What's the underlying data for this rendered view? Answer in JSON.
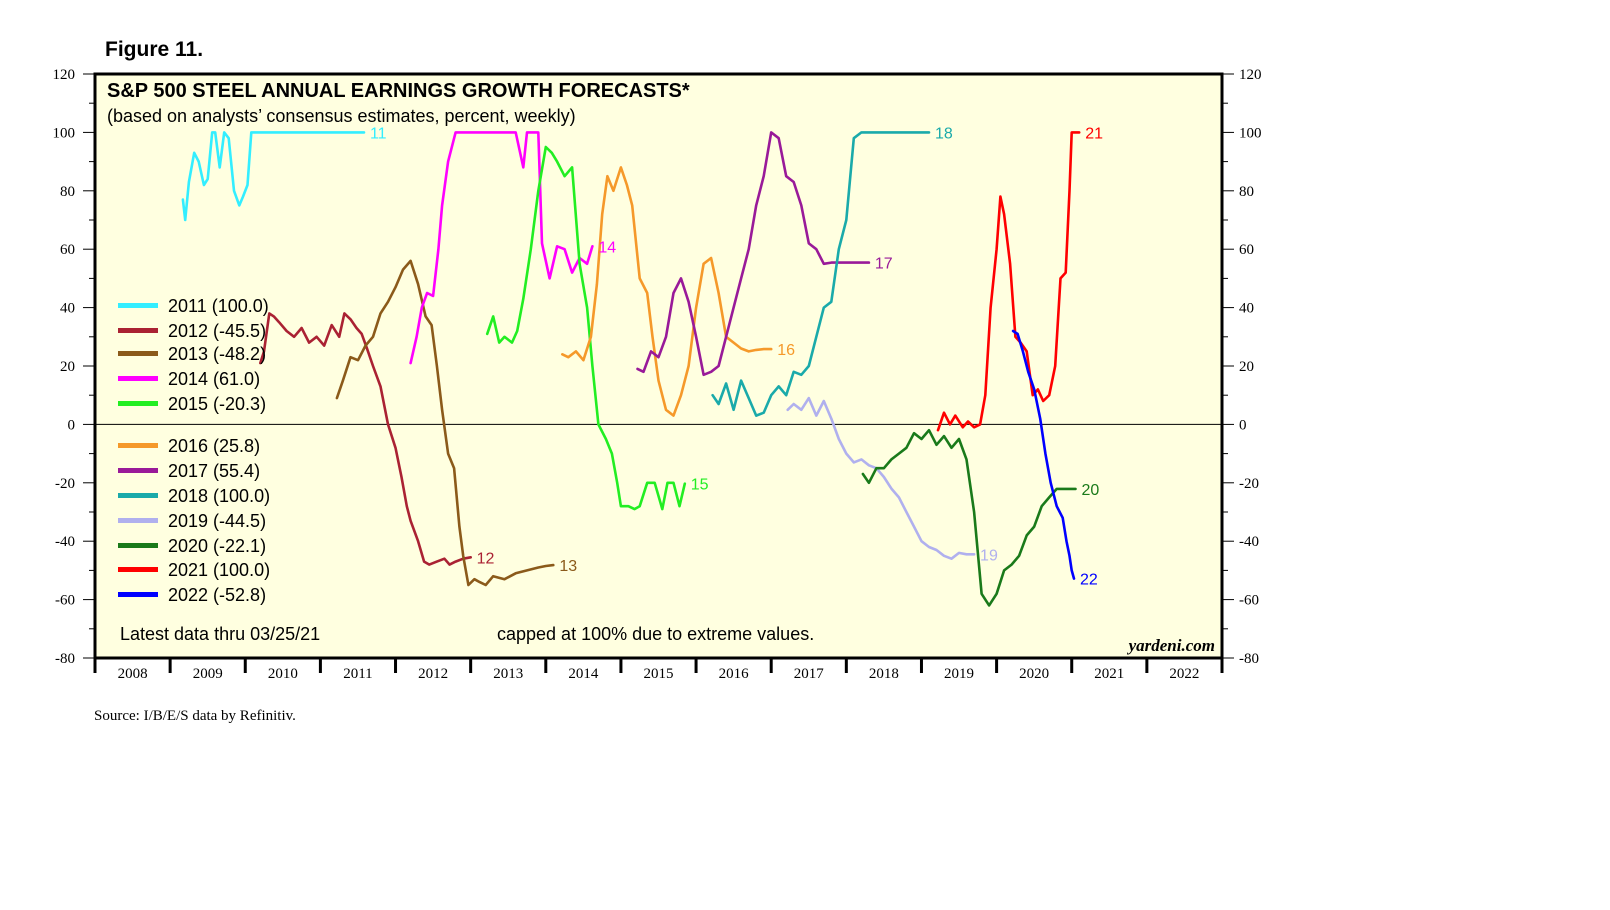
{
  "figure_label": "Figure 11.",
  "source": "Source: I/B/E/S data by Refinitiv.",
  "colors": {
    "plot_bg": "#ffffe0",
    "frame": "#000000"
  },
  "chart_data": {
    "type": "line",
    "title": "S&P 500 STEEL ANNUAL EARNINGS GROWTH FORECASTS*",
    "subtitle": "(based on analysts’ consensus estimates, percent, weekly)",
    "footnote_left": "Latest data thru 03/25/21",
    "footnote_center": "capped at 100% due to extreme values.",
    "watermark": "yardeni.com",
    "xlim": [
      2008,
      2023
    ],
    "ylim": [
      -80,
      120
    ],
    "y_ticks": [
      -80,
      -60,
      -40,
      -20,
      0,
      20,
      40,
      60,
      80,
      100,
      120
    ],
    "x_tick_labels": [
      "2008",
      "2009",
      "2010",
      "2011",
      "2012",
      "2013",
      "2014",
      "2015",
      "2016",
      "2017",
      "2018",
      "2019",
      "2020",
      "2021",
      "2022"
    ],
    "zero_line": true,
    "legend_placement": "left",
    "series": [
      {
        "name": "2011 (100.0)",
        "end_label": "11",
        "color": "#33eeff",
        "x": [
          2009.17,
          2009.2,
          2009.25,
          2009.32,
          2009.38,
          2009.45,
          2009.5,
          2009.56,
          2009.6,
          2009.66,
          2009.72,
          2009.78,
          2009.85,
          2009.92,
          2009.97,
          2010.03,
          2010.08,
          2010.13,
          2010.2,
          2010.5,
          2011.0,
          2011.58
        ],
        "y": [
          77,
          70,
          83,
          93,
          90,
          82,
          84,
          100,
          100,
          88,
          100,
          98,
          80,
          75,
          78,
          82,
          100,
          100,
          100,
          100,
          100,
          100
        ]
      },
      {
        "name": "2012 (-45.5)",
        "end_label": "12",
        "color": "#aa2233",
        "x": [
          2010.2,
          2010.25,
          2010.32,
          2010.38,
          2010.45,
          2010.55,
          2010.65,
          2010.75,
          2010.85,
          2010.95,
          2011.05,
          2011.15,
          2011.25,
          2011.32,
          2011.4,
          2011.48,
          2011.55,
          2011.62,
          2011.7,
          2011.8,
          2011.9,
          2012.0,
          2012.08,
          2012.15,
          2012.2,
          2012.3,
          2012.38,
          2012.45,
          2012.55,
          2012.65,
          2012.72,
          2012.8,
          2012.9,
          2013.0
        ],
        "y": [
          21,
          25,
          38,
          37,
          35,
          32,
          30,
          33,
          28,
          30,
          27,
          34,
          30,
          38,
          36,
          33,
          31,
          26,
          20,
          13,
          0,
          -8,
          -18,
          -28,
          -33,
          -40,
          -47,
          -48,
          -47,
          -46,
          -48,
          -47,
          -46,
          -45.5
        ]
      },
      {
        "name": "2013 (-48.2)",
        "end_label": "13",
        "color": "#8b5a1a",
        "x": [
          2011.22,
          2011.3,
          2011.4,
          2011.5,
          2011.6,
          2011.7,
          2011.8,
          2011.9,
          2012.0,
          2012.1,
          2012.2,
          2012.3,
          2012.4,
          2012.48,
          2012.55,
          2012.62,
          2012.7,
          2012.78,
          2012.85,
          2012.9,
          2012.97,
          2013.05,
          2013.12,
          2013.2,
          2013.3,
          2013.45,
          2013.6,
          2013.75,
          2013.9,
          2014.0,
          2014.1
        ],
        "y": [
          9,
          15,
          23,
          22,
          27,
          30,
          38,
          42,
          47,
          53,
          56,
          48,
          37,
          34,
          20,
          5,
          -10,
          -15,
          -35,
          -45,
          -55,
          -53,
          -54,
          -55,
          -52,
          -53,
          -51,
          -50,
          -49,
          -48.5,
          -48.2
        ]
      },
      {
        "name": "2014 (61.0)",
        "end_label": "14",
        "color": "#ff00ff",
        "x": [
          2012.2,
          2012.28,
          2012.35,
          2012.42,
          2012.5,
          2012.57,
          2012.62,
          2012.7,
          2012.8,
          2012.9,
          2013.0,
          2013.1,
          2013.2,
          2013.4,
          2013.6,
          2013.7,
          2013.75,
          2013.8,
          2013.85,
          2013.9,
          2013.95,
          2014.05,
          2014.15,
          2014.25,
          2014.35,
          2014.45,
          2014.55,
          2014.62
        ],
        "y": [
          21,
          30,
          40,
          45,
          44,
          60,
          75,
          90,
          100,
          100,
          100,
          100,
          100,
          100,
          100,
          88,
          100,
          100,
          100,
          100,
          62,
          50,
          61,
          60,
          52,
          57,
          55,
          61
        ]
      },
      {
        "name": "2015 (-20.3)",
        "end_label": "15",
        "color": "#22ee22",
        "x": [
          2013.22,
          2013.3,
          2013.38,
          2013.45,
          2013.55,
          2013.62,
          2013.7,
          2013.8,
          2013.9,
          2014.0,
          2014.08,
          2014.15,
          2014.25,
          2014.35,
          2014.45,
          2014.55,
          2014.62,
          2014.7,
          2014.8,
          2014.88,
          2014.95,
          2015.0,
          2015.1,
          2015.18,
          2015.25,
          2015.35,
          2015.45,
          2015.55,
          2015.62,
          2015.7,
          2015.78,
          2015.85
        ],
        "y": [
          31,
          37,
          28,
          30,
          28,
          32,
          43,
          60,
          80,
          95,
          93,
          90,
          85,
          88,
          55,
          40,
          20,
          0,
          -5,
          -10,
          -20,
          -28,
          -28,
          -29,
          -28,
          -20,
          -20,
          -29,
          -20,
          -20,
          -28,
          -20.3
        ]
      },
      {
        "name": "2016 (25.8)",
        "end_label": "16",
        "color": "#f5992a",
        "x": [
          2014.22,
          2014.3,
          2014.4,
          2014.5,
          2014.6,
          2014.68,
          2014.75,
          2014.82,
          2014.9,
          2015.0,
          2015.08,
          2015.15,
          2015.25,
          2015.35,
          2015.42,
          2015.5,
          2015.6,
          2015.7,
          2015.8,
          2015.9,
          2016.0,
          2016.1,
          2016.2,
          2016.3,
          2016.4,
          2016.5,
          2016.6,
          2016.7,
          2016.8,
          2016.9,
          2017.0
        ],
        "y": [
          24,
          23,
          25,
          22,
          30,
          48,
          72,
          85,
          80,
          88,
          82,
          75,
          50,
          45,
          30,
          15,
          5,
          3,
          10,
          20,
          40,
          55,
          57,
          45,
          30,
          28,
          26,
          25,
          25.5,
          25.8,
          25.8
        ]
      },
      {
        "name": "2017 (55.4)",
        "end_label": "17",
        "color": "#991a99",
        "x": [
          2015.22,
          2015.3,
          2015.4,
          2015.5,
          2015.6,
          2015.7,
          2015.8,
          2015.9,
          2016.0,
          2016.1,
          2016.2,
          2016.3,
          2016.4,
          2016.5,
          2016.6,
          2016.7,
          2016.8,
          2016.9,
          2017.0,
          2017.1,
          2017.2,
          2017.3,
          2017.4,
          2017.5,
          2017.6,
          2017.7,
          2017.8,
          2017.9,
          2018.0,
          2018.1,
          2018.2,
          2018.3
        ],
        "y": [
          19,
          18,
          25,
          23,
          30,
          45,
          50,
          42,
          30,
          17,
          18,
          20,
          30,
          40,
          50,
          60,
          75,
          85,
          100,
          98,
          85,
          83,
          75,
          62,
          60,
          55,
          55.4,
          55.4,
          55.4,
          55.4,
          55.4,
          55.4
        ]
      },
      {
        "name": "2018 (100.0)",
        "end_label": "18",
        "color": "#1aaaaa",
        "x": [
          2016.22,
          2016.3,
          2016.4,
          2016.5,
          2016.6,
          2016.7,
          2016.8,
          2016.9,
          2017.0,
          2017.1,
          2017.2,
          2017.3,
          2017.4,
          2017.5,
          2017.6,
          2017.7,
          2017.8,
          2017.9,
          2018.0,
          2018.1,
          2018.2,
          2018.3,
          2018.4,
          2018.5,
          2018.6,
          2018.7,
          2018.8,
          2018.9,
          2019.0,
          2019.1
        ],
        "y": [
          10,
          7,
          14,
          5,
          15,
          9,
          3,
          4,
          10,
          13,
          10,
          18,
          17,
          20,
          30,
          40,
          42,
          60,
          70,
          98,
          100,
          100,
          100,
          100,
          100,
          100,
          100,
          100,
          100,
          100
        ]
      },
      {
        "name": "2019 (-44.5)",
        "end_label": "19",
        "color": "#b0b0ee",
        "x": [
          2017.22,
          2017.3,
          2017.4,
          2017.5,
          2017.6,
          2017.7,
          2017.8,
          2017.9,
          2018.0,
          2018.1,
          2018.2,
          2018.3,
          2018.4,
          2018.5,
          2018.6,
          2018.7,
          2018.8,
          2018.9,
          2019.0,
          2019.1,
          2019.2,
          2019.3,
          2019.4,
          2019.5,
          2019.6,
          2019.7
        ],
        "y": [
          5,
          7,
          5,
          9,
          3,
          8,
          2,
          -5,
          -10,
          -13,
          -12,
          -14,
          -15,
          -18,
          -22,
          -25,
          -30,
          -35,
          -40,
          -42,
          -43,
          -45,
          -46,
          -44,
          -44.5,
          -44.5
        ]
      },
      {
        "name": "2020 (-22.1)",
        "end_label": "20",
        "color": "#1a7a1a",
        "x": [
          2018.22,
          2018.3,
          2018.4,
          2018.5,
          2018.6,
          2018.7,
          2018.8,
          2018.9,
          2019.0,
          2019.1,
          2019.2,
          2019.3,
          2019.4,
          2019.5,
          2019.6,
          2019.7,
          2019.8,
          2019.9,
          2020.0,
          2020.1,
          2020.2,
          2020.3,
          2020.4,
          2020.5,
          2020.6,
          2020.7,
          2020.8,
          2020.9,
          2021.0,
          2021.05
        ],
        "y": [
          -17,
          -20,
          -15,
          -15,
          -12,
          -10,
          -8,
          -3,
          -5,
          -2,
          -7,
          -4,
          -8,
          -5,
          -12,
          -30,
          -58,
          -62,
          -58,
          -50,
          -48,
          -45,
          -38,
          -35,
          -28,
          -25,
          -22.1,
          -22.1,
          -22.1,
          -22.1
        ]
      },
      {
        "name": "2021 (100.0)",
        "end_label": "21",
        "color": "#ff0000",
        "x": [
          2019.22,
          2019.3,
          2019.38,
          2019.45,
          2019.55,
          2019.62,
          2019.7,
          2019.78,
          2019.85,
          2019.92,
          2020.0,
          2020.05,
          2020.1,
          2020.18,
          2020.25,
          2020.32,
          2020.4,
          2020.48,
          2020.55,
          2020.62,
          2020.7,
          2020.78,
          2020.85,
          2020.92,
          2020.97,
          2021.0,
          2021.04,
          2021.07,
          2021.1
        ],
        "y": [
          -2,
          4,
          0,
          3,
          -1,
          1,
          -1,
          0,
          10,
          40,
          60,
          78,
          72,
          55,
          30,
          28,
          25,
          10,
          12,
          8,
          10,
          20,
          50,
          52,
          80,
          100,
          100,
          100,
          100
        ]
      },
      {
        "name": "2022 (-52.8)",
        "end_label": "22",
        "color": "#0000ff",
        "x": [
          2020.22,
          2020.28,
          2020.35,
          2020.42,
          2020.5,
          2020.58,
          2020.65,
          2020.72,
          2020.8,
          2020.88,
          2020.93,
          2020.97,
          2021.0,
          2021.03
        ],
        "y": [
          32,
          31,
          25,
          18,
          12,
          2,
          -10,
          -20,
          -28,
          -32,
          -40,
          -45,
          -50,
          -52.8
        ]
      }
    ]
  }
}
